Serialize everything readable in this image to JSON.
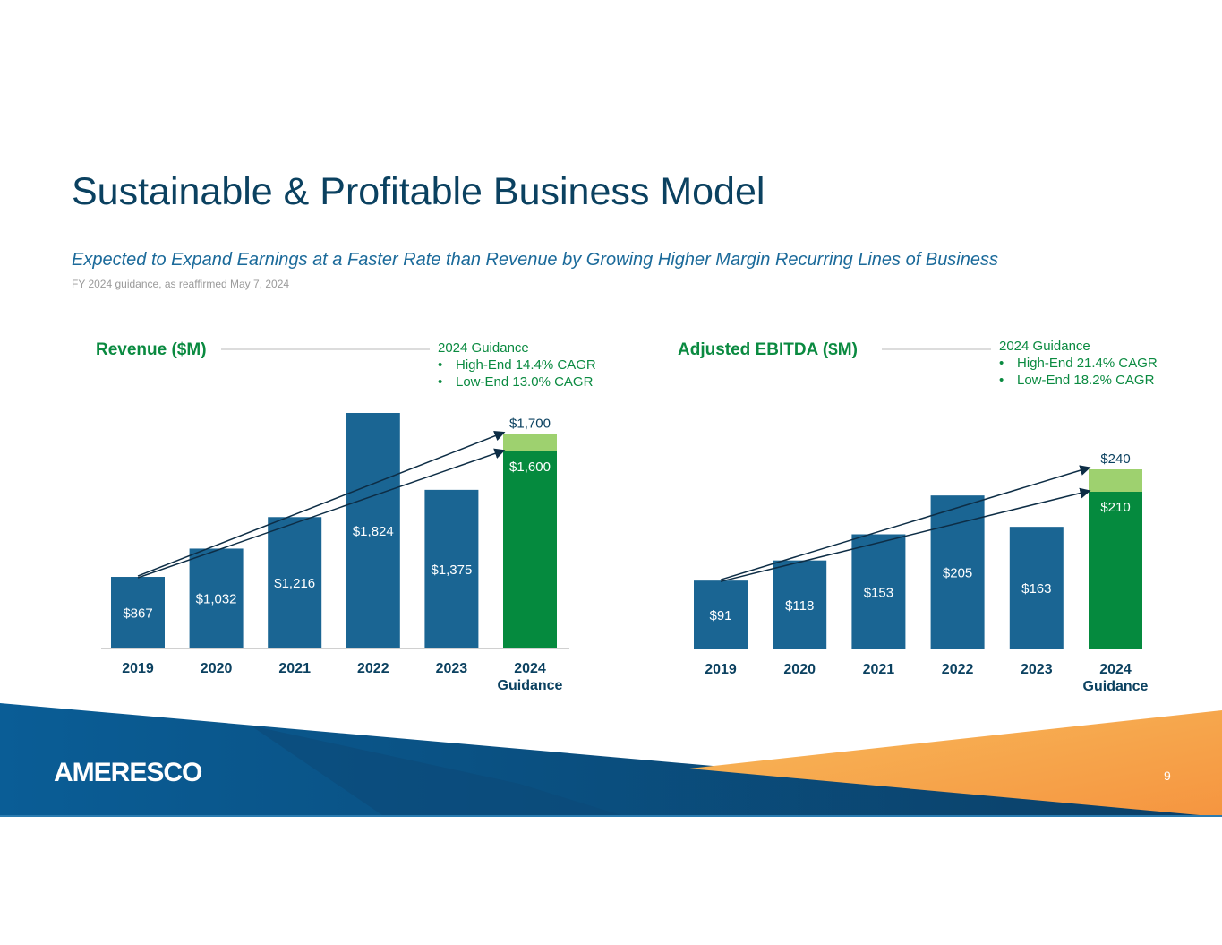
{
  "slide": {
    "title": "Sustainable & Profitable Business Model",
    "subtitle": "Expected to Expand Earnings at a Faster Rate than Revenue by Growing Higher Margin Recurring Lines of Business",
    "note": "FY 2024 guidance, as reaffirmed May 7, 2024",
    "page_number": "9",
    "logo_text": "AMERESCO"
  },
  "colors": {
    "bar": "#1a6593",
    "guidance_low": "#058a3e",
    "guidance_high": "#9ed16f",
    "title": "#0b4160",
    "accent_green": "#0a8a40",
    "arrow": "#0d2d45"
  },
  "chart_data": [
    {
      "type": "bar",
      "title": "Revenue ($M)",
      "guidance_title": "2024 Guidance",
      "guidance_bullets": [
        "High-End 14.4% CAGR",
        "Low-End 13.0% CAGR"
      ],
      "categories": [
        "2019",
        "2020",
        "2021",
        "2022",
        "2023",
        "2024 Guidance"
      ],
      "category_lines": [
        [
          "2019"
        ],
        [
          "2020"
        ],
        [
          "2021"
        ],
        [
          "2022"
        ],
        [
          "2023"
        ],
        [
          "2024",
          "Guidance"
        ]
      ],
      "values": [
        867,
        1032,
        1216,
        1824,
        1375,
        1600
      ],
      "labels": [
        "$867",
        "$1,032",
        "$1,216",
        "$1,824",
        "$1,375",
        "$1,600"
      ],
      "guidance_high": 1700,
      "guidance_high_label": "$1,700",
      "ylim": [
        454,
        1824
      ]
    },
    {
      "type": "bar",
      "title": "Adjusted EBITDA ($M)",
      "guidance_title": "2024 Guidance",
      "guidance_bullets": [
        "High-End 21.4% CAGR",
        "Low-End 18.2% CAGR"
      ],
      "categories": [
        "2019",
        "2020",
        "2021",
        "2022",
        "2023",
        "2024 Guidance"
      ],
      "category_lines": [
        [
          "2019"
        ],
        [
          "2020"
        ],
        [
          "2021"
        ],
        [
          "2022"
        ],
        [
          "2023"
        ],
        [
          "2024",
          "Guidance"
        ]
      ],
      "values": [
        91,
        118,
        153,
        205,
        163,
        210
      ],
      "labels": [
        "$91",
        "$118",
        "$153",
        "$205",
        "$163",
        "$210"
      ],
      "guidance_high": 240,
      "guidance_high_label": "$240",
      "ylim": [
        0,
        240
      ]
    }
  ]
}
